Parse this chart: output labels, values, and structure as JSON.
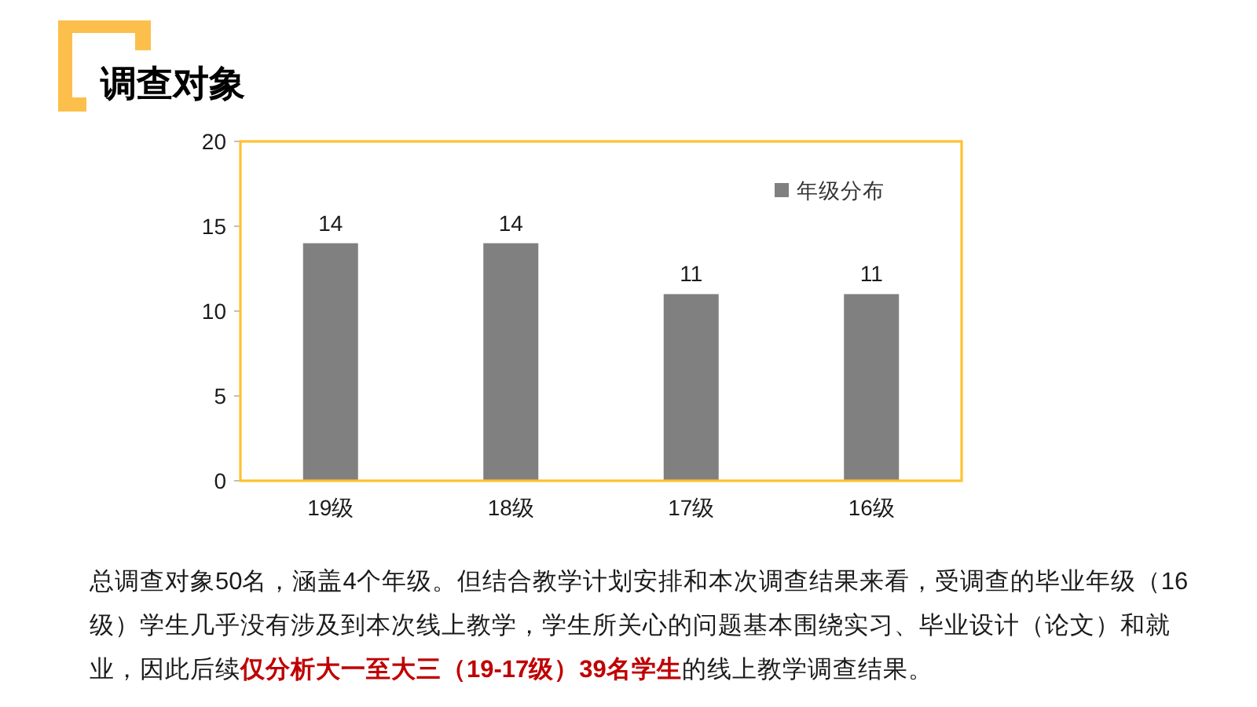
{
  "chart_data": {
    "type": "bar",
    "title": "调查对象",
    "categories": [
      "19级",
      "18级",
      "17级",
      "16级"
    ],
    "series": [
      {
        "name": "年级分布",
        "color": "#808080",
        "values": [
          14,
          14,
          11,
          11
        ]
      }
    ],
    "ylim": [
      0,
      20
    ],
    "yticks": [
      0,
      5,
      10,
      15,
      20
    ],
    "data_labels": true,
    "legend": "top right",
    "annotations": [
      "总调查对象50名，涵盖4个年级。但结合教学计划安排和本次调查结果来看，受调查的毕业年级（16级）学生几乎没有涉及到本次线上教学，学生所关心的问题基本围绕实习、毕业设计（论文）和就业，因此后续**仅分析大一至大三（19-17级）39名学生**的线上教学调查结果。"
    ]
  }
}
